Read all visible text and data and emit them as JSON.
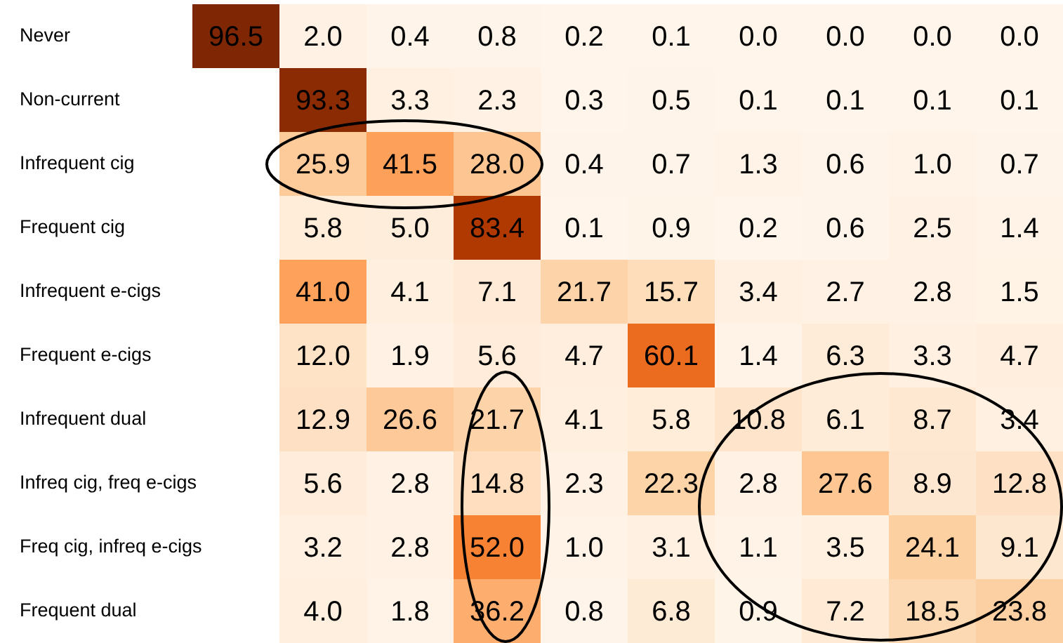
{
  "chart_data": {
    "type": "heatmap",
    "categories": [
      null,
      null,
      null,
      null,
      null,
      null,
      null,
      null,
      null,
      null
    ],
    "y_categories": [
      "Never",
      "Non-current",
      "Infrequent cig",
      "Frequent cig",
      "Infrequent e-cigs",
      "Frequent e-cigs",
      "Infrequent dual",
      "Infreq cig, freq e-cigs",
      "Freq cig, infreq e-cigs",
      "Frequent dual"
    ],
    "cells": [
      [
        96.5,
        2.0,
        0.4,
        0.8,
        0.2,
        0.1,
        0.0,
        0.0,
        0.0,
        0.0
      ],
      [
        null,
        93.3,
        3.3,
        2.3,
        0.3,
        0.5,
        0.1,
        0.1,
        0.1,
        0.1
      ],
      [
        null,
        25.9,
        41.5,
        28.0,
        0.4,
        0.7,
        1.3,
        0.6,
        1.0,
        0.7
      ],
      [
        null,
        5.8,
        5.0,
        83.4,
        0.1,
        0.9,
        0.2,
        0.6,
        2.5,
        1.4
      ],
      [
        null,
        41.0,
        4.1,
        7.1,
        21.7,
        15.7,
        3.4,
        2.7,
        2.8,
        1.5
      ],
      [
        null,
        12.0,
        1.9,
        5.6,
        4.7,
        60.1,
        1.4,
        6.3,
        3.3,
        4.7
      ],
      [
        null,
        12.9,
        26.6,
        21.7,
        4.1,
        5.8,
        10.8,
        6.1,
        8.7,
        3.4
      ],
      [
        null,
        5.6,
        2.8,
        14.8,
        2.3,
        22.3,
        2.8,
        27.6,
        8.9,
        12.8
      ],
      [
        null,
        3.2,
        2.8,
        52.0,
        1.0,
        3.1,
        1.1,
        3.5,
        24.1,
        9.1
      ],
      [
        null,
        4.0,
        1.8,
        36.2,
        0.8,
        6.8,
        0.9,
        7.2,
        18.5,
        23.8
      ]
    ],
    "cell_labels": [
      [
        "96.5",
        "2.0",
        "0.4",
        "0.8",
        "0.2",
        "0.1",
        "0.0",
        "0.0",
        "0.0",
        "0.0"
      ],
      [
        null,
        "93.3",
        "3.3",
        "2.3",
        "0.3",
        "0.5",
        "0.1",
        "0.1",
        "0.1",
        "0.1"
      ],
      [
        null,
        "25.9",
        "41.5",
        "28.0",
        "0.4",
        "0.7",
        "1.3",
        "0.6",
        "1.0",
        "0.7"
      ],
      [
        null,
        "5.8",
        "5.0",
        "83.4",
        "0.1",
        "0.9",
        "0.2",
        "0.6",
        "2.5",
        "1.4"
      ],
      [
        null,
        "41.0",
        "4.1",
        "7.1",
        "21.7",
        "15.7",
        "3.4",
        "2.7",
        "2.8",
        "1.5"
      ],
      [
        null,
        "12.0",
        "1.9",
        "5.6",
        "4.7",
        "60.1",
        "1.4",
        "6.3",
        "3.3",
        "4.7"
      ],
      [
        null,
        "12.9",
        "26.6",
        "21.7",
        "4.1",
        "5.8",
        "10.8",
        "6.1",
        "8.7",
        "3.4"
      ],
      [
        null,
        "5.6",
        "2.8",
        "14.8",
        "2.3",
        "22.3",
        "2.8",
        "27.6",
        "8.9",
        "12.8"
      ],
      [
        null,
        "3.2",
        "2.8",
        "52.0",
        "1.0",
        "3.1",
        "1.1",
        "3.5",
        "24.1",
        "9.1"
      ],
      [
        null,
        "4.0",
        "1.8",
        "36.2",
        "0.8",
        "6.8",
        "0.9",
        "7.2",
        "18.5",
        "23.8"
      ]
    ],
    "tick_labels": "y",
    "grid": false,
    "legend": false
  }
}
